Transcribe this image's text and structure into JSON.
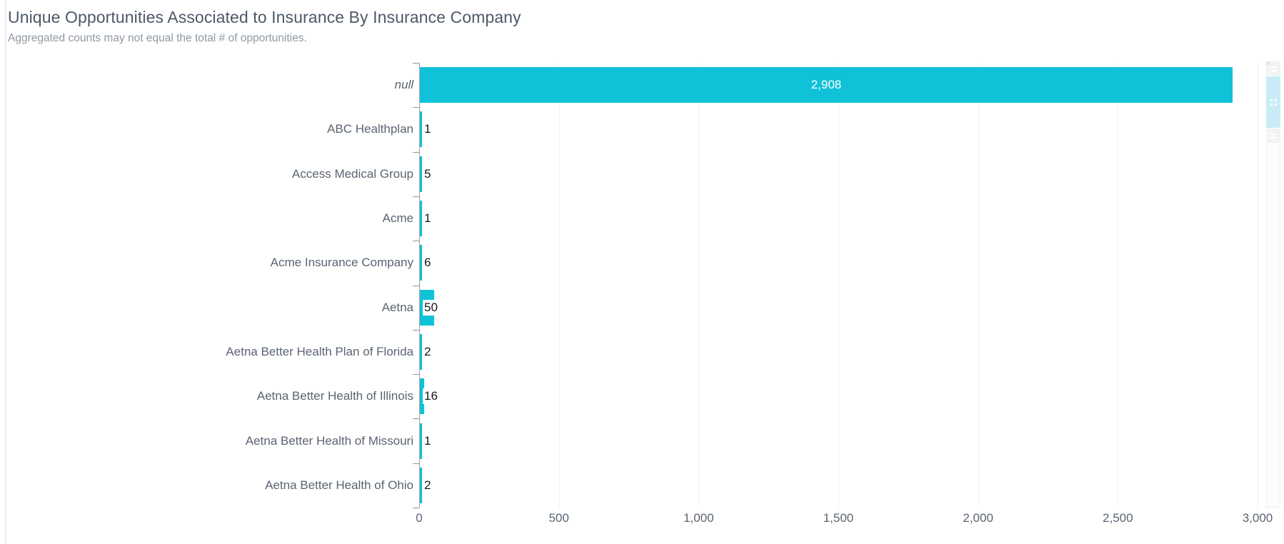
{
  "header": {
    "title": "Unique Opportunities Associated to Insurance By Insurance Company",
    "subtitle": "Aggregated counts may not equal the total # of opportunities."
  },
  "chart_data": {
    "type": "bar",
    "orientation": "horizontal",
    "title": "Unique Opportunities Associated to Insurance By Insurance Company",
    "subtitle": "Aggregated counts may not equal the total # of opportunities.",
    "categories": [
      "null",
      "ABC Healthplan",
      "Access Medical Group",
      "Acme",
      "Acme Insurance Company",
      "Aetna",
      "Aetna Better Health Plan of Florida",
      "Aetna Better Health of Illinois",
      "Aetna Better Health of Missouri",
      "Aetna Better Health of Ohio"
    ],
    "values": [
      2908,
      1,
      5,
      1,
      6,
      50,
      2,
      16,
      1,
      2
    ],
    "value_labels": [
      "2,908",
      "1",
      "5",
      "1",
      "6",
      "50",
      "2",
      "16",
      "1",
      "2"
    ],
    "italic_categories": [
      "null"
    ],
    "xlabel": "",
    "ylabel": "",
    "xlim": [
      0,
      3000
    ],
    "x_tick_values": [
      0,
      500,
      1000,
      1500,
      2000,
      2500,
      3000
    ],
    "x_tick_labels": [
      "0",
      "500",
      "1,000",
      "1,500",
      "2,000",
      "2,500",
      "3,000"
    ],
    "grid": true,
    "legend": "none",
    "bar_color": "#10c2d8",
    "inside_label_color": "#ffffff",
    "outside_label_color": "#15181d"
  },
  "scrollbar": {
    "top_handle_icon": "grip-lines-icon",
    "window_icon": "grip-dots-icon",
    "bottom_handle_icon": "grip-lines-icon",
    "window_color": "#c9ecf6",
    "handle_color": "#f2f3f4"
  }
}
